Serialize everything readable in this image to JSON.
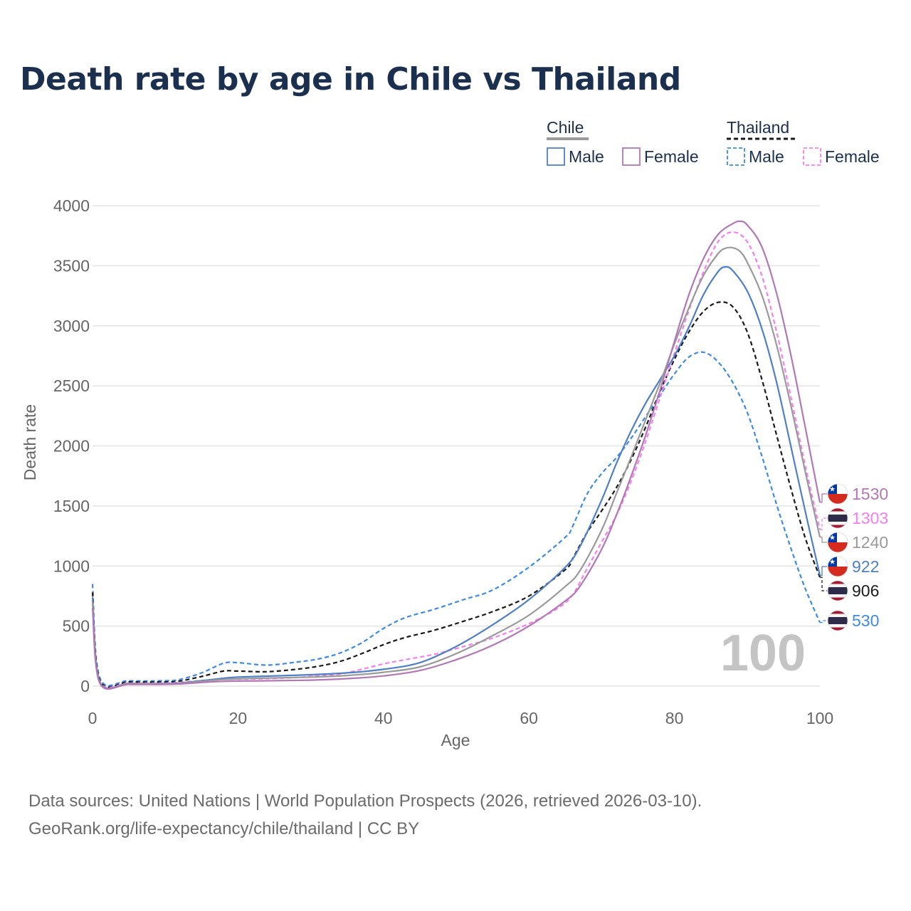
{
  "title": "Death rate by age in Chile vs Thailand",
  "source_line1": "Data sources: United Nations | World Population Prospects (2026, retrieved 2026-03-10).",
  "source_line2": "GeoRank.org/life-expectancy/chile/thailand | CC BY",
  "watermark": "100",
  "legend": {
    "chile": "Chile",
    "thailand": "Thailand",
    "male": "Male",
    "female": "Female"
  },
  "colors": {
    "chile_total": "#9a9a9a",
    "chile_male": "#4f7fc7",
    "chile_female": "#b277b5",
    "thailand_total": "#1a1a1a",
    "thailand_male": "#3e8be3",
    "thailand_female": "#f77ef0"
  },
  "chart_data": {
    "type": "line",
    "title": "Death rate by age in Chile vs Thailand",
    "xlabel": "Age",
    "ylabel": "Death rate",
    "xlim": [
      0,
      100
    ],
    "ylim": [
      0,
      4000
    ],
    "xticks": [
      0,
      20,
      40,
      60,
      80,
      100
    ],
    "yticks": [
      0,
      500,
      1000,
      1500,
      2000,
      2500,
      3000,
      3500,
      4000
    ],
    "grid": true,
    "legend_position": "top-right",
    "series": [
      {
        "key": "thailand_male",
        "name": "Thailand Male",
        "country": "Thailand",
        "sex": "Male",
        "dashed": true,
        "color": "#3e8be3",
        "end_label": "530",
        "points": [
          [
            0,
            850
          ],
          [
            1,
            70
          ],
          [
            5,
            45
          ],
          [
            10,
            45
          ],
          [
            12,
            55
          ],
          [
            15,
            110
          ],
          [
            18,
            190
          ],
          [
            20,
            195
          ],
          [
            24,
            175
          ],
          [
            28,
            200
          ],
          [
            31,
            225
          ],
          [
            34,
            275
          ],
          [
            37,
            360
          ],
          [
            40,
            480
          ],
          [
            43,
            570
          ],
          [
            47,
            640
          ],
          [
            51,
            720
          ],
          [
            55,
            800
          ],
          [
            60,
            990
          ],
          [
            65,
            1240
          ],
          [
            66,
            1330
          ],
          [
            68,
            1600
          ],
          [
            70,
            1770
          ],
          [
            72,
            1900
          ],
          [
            74,
            2060
          ],
          [
            76,
            2240
          ],
          [
            78,
            2420
          ],
          [
            80,
            2600
          ],
          [
            82,
            2740
          ],
          [
            84,
            2780
          ],
          [
            86,
            2700
          ],
          [
            88,
            2530
          ],
          [
            90,
            2280
          ],
          [
            92,
            1920
          ],
          [
            94,
            1520
          ],
          [
            96,
            1150
          ],
          [
            98,
            810
          ],
          [
            100,
            530
          ]
        ]
      },
      {
        "key": "thailand_total",
        "name": "Thailand Total",
        "country": "Thailand",
        "sex": "Total",
        "dashed": true,
        "color": "#1a1a1a",
        "end_label": "906",
        "points": [
          [
            0,
            780
          ],
          [
            1,
            50
          ],
          [
            5,
            35
          ],
          [
            10,
            35
          ],
          [
            12,
            42
          ],
          [
            15,
            80
          ],
          [
            18,
            125
          ],
          [
            20,
            125
          ],
          [
            24,
            120
          ],
          [
            28,
            140
          ],
          [
            31,
            165
          ],
          [
            34,
            205
          ],
          [
            37,
            270
          ],
          [
            40,
            345
          ],
          [
            43,
            405
          ],
          [
            47,
            465
          ],
          [
            51,
            540
          ],
          [
            55,
            620
          ],
          [
            60,
            750
          ],
          [
            65,
            970
          ],
          [
            66,
            1060
          ],
          [
            68,
            1280
          ],
          [
            70,
            1460
          ],
          [
            72,
            1650
          ],
          [
            74,
            1880
          ],
          [
            76,
            2150
          ],
          [
            78,
            2450
          ],
          [
            80,
            2720
          ],
          [
            82,
            2950
          ],
          [
            84,
            3120
          ],
          [
            86,
            3195
          ],
          [
            88,
            3160
          ],
          [
            90,
            2950
          ],
          [
            92,
            2560
          ],
          [
            94,
            2100
          ],
          [
            96,
            1650
          ],
          [
            98,
            1230
          ],
          [
            100,
            906
          ]
        ]
      },
      {
        "key": "thailand_female",
        "name": "Thailand Female",
        "country": "Thailand",
        "sex": "Female",
        "dashed": true,
        "color": "#f77ef0",
        "end_label": "1303",
        "points": [
          [
            0,
            700
          ],
          [
            1,
            40
          ],
          [
            5,
            25
          ],
          [
            10,
            25
          ],
          [
            12,
            30
          ],
          [
            15,
            45
          ],
          [
            18,
            55
          ],
          [
            20,
            58
          ],
          [
            24,
            62
          ],
          [
            28,
            72
          ],
          [
            31,
            85
          ],
          [
            34,
            100
          ],
          [
            37,
            140
          ],
          [
            40,
            185
          ],
          [
            43,
            220
          ],
          [
            47,
            265
          ],
          [
            51,
            330
          ],
          [
            55,
            400
          ],
          [
            60,
            520
          ],
          [
            64,
            650
          ],
          [
            66,
            760
          ],
          [
            68,
            980
          ],
          [
            70,
            1200
          ],
          [
            72,
            1420
          ],
          [
            74,
            1700
          ],
          [
            76,
            2030
          ],
          [
            78,
            2400
          ],
          [
            80,
            2770
          ],
          [
            82,
            3130
          ],
          [
            84,
            3450
          ],
          [
            86,
            3700
          ],
          [
            88,
            3780
          ],
          [
            90,
            3700
          ],
          [
            92,
            3420
          ],
          [
            94,
            2960
          ],
          [
            96,
            2410
          ],
          [
            98,
            1830
          ],
          [
            100,
            1303
          ]
        ]
      },
      {
        "key": "chile_male",
        "name": "Chile Male",
        "country": "Chile",
        "sex": "Male",
        "dashed": false,
        "color": "#4f7fc7",
        "end_label": "922",
        "points": [
          [
            0,
            740
          ],
          [
            1,
            35
          ],
          [
            5,
            22
          ],
          [
            10,
            20
          ],
          [
            12,
            25
          ],
          [
            15,
            45
          ],
          [
            18,
            65
          ],
          [
            20,
            75
          ],
          [
            25,
            85
          ],
          [
            30,
            95
          ],
          [
            35,
            110
          ],
          [
            40,
            140
          ],
          [
            45,
            195
          ],
          [
            50,
            330
          ],
          [
            55,
            510
          ],
          [
            60,
            720
          ],
          [
            65,
            990
          ],
          [
            67,
            1160
          ],
          [
            70,
            1550
          ],
          [
            72,
            1850
          ],
          [
            74,
            2120
          ],
          [
            76,
            2350
          ],
          [
            78,
            2550
          ],
          [
            80,
            2750
          ],
          [
            82,
            2990
          ],
          [
            84,
            3260
          ],
          [
            86,
            3450
          ],
          [
            87,
            3490
          ],
          [
            88,
            3460
          ],
          [
            90,
            3290
          ],
          [
            92,
            2980
          ],
          [
            94,
            2540
          ],
          [
            96,
            2000
          ],
          [
            98,
            1450
          ],
          [
            100,
            922
          ]
        ]
      },
      {
        "key": "chile_total",
        "name": "Chile Total",
        "country": "Chile",
        "sex": "Total",
        "dashed": false,
        "color": "#9a9a9a",
        "end_label": "1240",
        "points": [
          [
            0,
            700
          ],
          [
            1,
            30
          ],
          [
            5,
            20
          ],
          [
            10,
            18
          ],
          [
            12,
            22
          ],
          [
            15,
            40
          ],
          [
            18,
            55
          ],
          [
            20,
            60
          ],
          [
            25,
            68
          ],
          [
            30,
            75
          ],
          [
            35,
            88
          ],
          [
            40,
            115
          ],
          [
            45,
            160
          ],
          [
            50,
            270
          ],
          [
            55,
            420
          ],
          [
            60,
            590
          ],
          [
            65,
            830
          ],
          [
            67,
            960
          ],
          [
            70,
            1300
          ],
          [
            72,
            1600
          ],
          [
            74,
            1900
          ],
          [
            76,
            2210
          ],
          [
            78,
            2520
          ],
          [
            80,
            2850
          ],
          [
            82,
            3150
          ],
          [
            84,
            3420
          ],
          [
            86,
            3600
          ],
          [
            87,
            3645
          ],
          [
            88,
            3650
          ],
          [
            89,
            3620
          ],
          [
            90,
            3530
          ],
          [
            92,
            3260
          ],
          [
            94,
            2850
          ],
          [
            96,
            2340
          ],
          [
            98,
            1780
          ],
          [
            100,
            1240
          ]
        ]
      },
      {
        "key": "chile_female",
        "name": "Chile Female",
        "country": "Chile",
        "sex": "Female",
        "dashed": false,
        "color": "#b277b5",
        "end_label": "1530",
        "points": [
          [
            0,
            650
          ],
          [
            1,
            25
          ],
          [
            5,
            15
          ],
          [
            10,
            15
          ],
          [
            12,
            18
          ],
          [
            15,
            30
          ],
          [
            18,
            40
          ],
          [
            20,
            42
          ],
          [
            25,
            45
          ],
          [
            30,
            50
          ],
          [
            35,
            62
          ],
          [
            40,
            85
          ],
          [
            45,
            130
          ],
          [
            50,
            220
          ],
          [
            55,
            340
          ],
          [
            60,
            500
          ],
          [
            65,
            710
          ],
          [
            67,
            830
          ],
          [
            70,
            1140
          ],
          [
            72,
            1420
          ],
          [
            74,
            1740
          ],
          [
            76,
            2080
          ],
          [
            78,
            2460
          ],
          [
            80,
            2870
          ],
          [
            82,
            3260
          ],
          [
            84,
            3560
          ],
          [
            86,
            3760
          ],
          [
            88,
            3850
          ],
          [
            89,
            3870
          ],
          [
            90,
            3840
          ],
          [
            92,
            3660
          ],
          [
            94,
            3280
          ],
          [
            96,
            2760
          ],
          [
            98,
            2150
          ],
          [
            100,
            1530
          ]
        ]
      }
    ]
  }
}
